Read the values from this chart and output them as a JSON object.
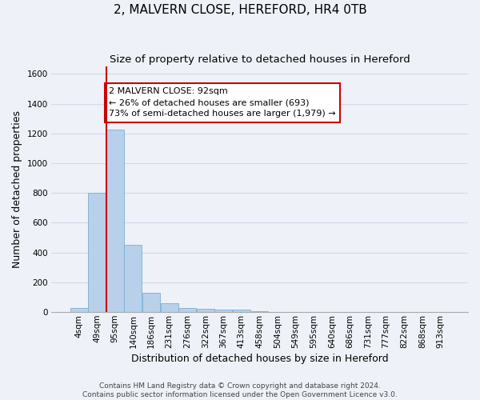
{
  "title": "2, MALVERN CLOSE, HEREFORD, HR4 0TB",
  "subtitle": "Size of property relative to detached houses in Hereford",
  "xlabel": "Distribution of detached houses by size in Hereford",
  "ylabel": "Number of detached properties",
  "bar_labels": [
    "4sqm",
    "49sqm",
    "95sqm",
    "140sqm",
    "186sqm",
    "231sqm",
    "276sqm",
    "322sqm",
    "367sqm",
    "413sqm",
    "458sqm",
    "504sqm",
    "549sqm",
    "595sqm",
    "640sqm",
    "686sqm",
    "731sqm",
    "777sqm",
    "822sqm",
    "868sqm",
    "913sqm"
  ],
  "bar_values": [
    25,
    800,
    1225,
    450,
    130,
    60,
    25,
    20,
    15,
    15,
    5,
    0,
    0,
    0,
    0,
    0,
    0,
    0,
    0,
    0,
    0
  ],
  "bar_color": "#b8d0ea",
  "bar_edge_color": "#7aafd4",
  "background_color": "#eef2f8",
  "grid_color": "#d0d8e8",
  "ylim": [
    0,
    1650
  ],
  "yticks": [
    0,
    200,
    400,
    600,
    800,
    1000,
    1200,
    1400,
    1600
  ],
  "annotation_line1": "2 MALVERN CLOSE: 92sqm",
  "annotation_line2": "← 26% of detached houses are smaller (693)",
  "annotation_line3": "73% of semi-detached houses are larger (1,979) →",
  "red_line_color": "#cc0000",
  "footer_line1": "Contains HM Land Registry data © Crown copyright and database right 2024.",
  "footer_line2": "Contains public sector information licensed under the Open Government Licence v3.0.",
  "annotation_box_color": "#ffffff",
  "annotation_box_edge": "#cc0000",
  "title_fontsize": 11,
  "subtitle_fontsize": 9.5,
  "axis_label_fontsize": 9,
  "tick_fontsize": 7.5,
  "annotation_fontsize": 8,
  "footer_fontsize": 6.5
}
